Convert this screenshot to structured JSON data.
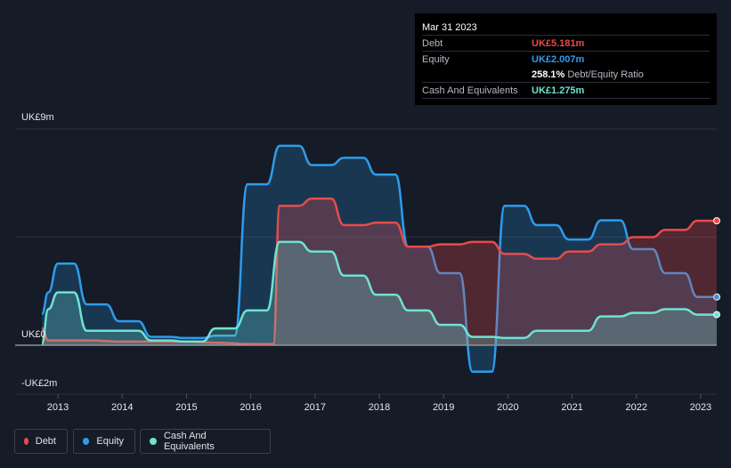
{
  "tooltip": {
    "date": "Mar 31 2023",
    "rows": [
      {
        "label": "Debt",
        "value": "UK£5.181m",
        "color": "#e84b4b"
      },
      {
        "label": "Equity",
        "value": "UK£2.007m",
        "color": "#2d9cec"
      },
      {
        "label": "",
        "value": "258.1%",
        "extra": "Debt/Equity Ratio",
        "color": "#ffffff"
      },
      {
        "label": "Cash And Equivalents",
        "value": "UK£1.275m",
        "color": "#6ee3d2"
      }
    ]
  },
  "legend": {
    "debt": "Debt",
    "equity": "Equity",
    "cash": "Cash And Equivalents"
  },
  "colors": {
    "debt": "#e84b4b",
    "equity": "#2d9cec",
    "cash": "#6ee3d2",
    "background": "#151b27"
  },
  "chart_data": {
    "type": "area",
    "y_tick_labels": [
      "UK£9m",
      "UK£0",
      "-UK£2m"
    ],
    "ylim": [
      -2,
      9
    ],
    "xlim": [
      2012.75,
      2023.25
    ],
    "x_tick_labels": [
      "2013",
      "2014",
      "2015",
      "2016",
      "2017",
      "2018",
      "2019",
      "2020",
      "2021",
      "2022",
      "2023"
    ],
    "grid": true,
    "legend_position": "bottom-left",
    "series": [
      {
        "name": "Debt",
        "points": [
          [
            2012.75,
            0.7
          ],
          [
            2012.85,
            0.2
          ],
          [
            2013.0,
            0.2
          ],
          [
            2013.5,
            0.2
          ],
          [
            2014.0,
            0.15
          ],
          [
            2014.5,
            0.15
          ],
          [
            2015.0,
            0.15
          ],
          [
            2015.5,
            0.1
          ],
          [
            2016.0,
            0.05
          ],
          [
            2016.25,
            0.05
          ],
          [
            2016.35,
            0.05
          ],
          [
            2016.45,
            5.8
          ],
          [
            2016.75,
            5.8
          ],
          [
            2016.95,
            6.1
          ],
          [
            2017.25,
            6.1
          ],
          [
            2017.45,
            5.0
          ],
          [
            2017.75,
            5.0
          ],
          [
            2017.95,
            5.1
          ],
          [
            2018.25,
            5.1
          ],
          [
            2018.45,
            4.1
          ],
          [
            2018.75,
            4.1
          ],
          [
            2018.95,
            4.2
          ],
          [
            2019.25,
            4.2
          ],
          [
            2019.45,
            4.3
          ],
          [
            2019.75,
            4.3
          ],
          [
            2019.95,
            3.8
          ],
          [
            2020.25,
            3.8
          ],
          [
            2020.45,
            3.6
          ],
          [
            2020.75,
            3.6
          ],
          [
            2020.95,
            3.9
          ],
          [
            2021.25,
            3.9
          ],
          [
            2021.45,
            4.2
          ],
          [
            2021.75,
            4.2
          ],
          [
            2021.95,
            4.5
          ],
          [
            2022.25,
            4.5
          ],
          [
            2022.45,
            4.8
          ],
          [
            2022.75,
            4.8
          ],
          [
            2022.95,
            5.181
          ],
          [
            2023.25,
            5.181
          ]
        ]
      },
      {
        "name": "Equity",
        "points": [
          [
            2012.75,
            1.3
          ],
          [
            2012.85,
            2.2
          ],
          [
            2013.0,
            3.4
          ],
          [
            2013.25,
            3.4
          ],
          [
            2013.45,
            1.7
          ],
          [
            2013.75,
            1.7
          ],
          [
            2013.95,
            1.0
          ],
          [
            2014.25,
            1.0
          ],
          [
            2014.45,
            0.35
          ],
          [
            2014.75,
            0.35
          ],
          [
            2014.95,
            0.3
          ],
          [
            2015.25,
            0.3
          ],
          [
            2015.45,
            0.4
          ],
          [
            2015.75,
            0.4
          ],
          [
            2015.95,
            6.7
          ],
          [
            2016.25,
            6.7
          ],
          [
            2016.45,
            8.3
          ],
          [
            2016.75,
            8.3
          ],
          [
            2016.95,
            7.5
          ],
          [
            2017.25,
            7.5
          ],
          [
            2017.45,
            7.8
          ],
          [
            2017.75,
            7.8
          ],
          [
            2017.95,
            7.1
          ],
          [
            2018.25,
            7.1
          ],
          [
            2018.45,
            4.1
          ],
          [
            2018.75,
            4.1
          ],
          [
            2018.95,
            3.0
          ],
          [
            2019.25,
            3.0
          ],
          [
            2019.45,
            -1.1
          ],
          [
            2019.75,
            -1.1
          ],
          [
            2019.95,
            5.8
          ],
          [
            2020.25,
            5.8
          ],
          [
            2020.45,
            5.0
          ],
          [
            2020.75,
            5.0
          ],
          [
            2020.95,
            4.4
          ],
          [
            2021.25,
            4.4
          ],
          [
            2021.45,
            5.2
          ],
          [
            2021.75,
            5.2
          ],
          [
            2021.95,
            4.0
          ],
          [
            2022.25,
            4.0
          ],
          [
            2022.45,
            3.0
          ],
          [
            2022.75,
            3.0
          ],
          [
            2022.95,
            2.007
          ],
          [
            2023.25,
            2.007
          ]
        ]
      },
      {
        "name": "Cash And Equivalents",
        "points": [
          [
            2012.75,
            0.05
          ],
          [
            2012.85,
            1.5
          ],
          [
            2013.0,
            2.2
          ],
          [
            2013.25,
            2.2
          ],
          [
            2013.45,
            0.6
          ],
          [
            2013.75,
            0.6
          ],
          [
            2013.95,
            0.6
          ],
          [
            2014.25,
            0.6
          ],
          [
            2014.45,
            0.2
          ],
          [
            2014.75,
            0.2
          ],
          [
            2014.95,
            0.15
          ],
          [
            2015.25,
            0.15
          ],
          [
            2015.45,
            0.7
          ],
          [
            2015.75,
            0.7
          ],
          [
            2015.95,
            1.45
          ],
          [
            2016.25,
            1.45
          ],
          [
            2016.45,
            4.3
          ],
          [
            2016.75,
            4.3
          ],
          [
            2016.95,
            3.9
          ],
          [
            2017.25,
            3.9
          ],
          [
            2017.45,
            2.9
          ],
          [
            2017.75,
            2.9
          ],
          [
            2017.95,
            2.1
          ],
          [
            2018.25,
            2.1
          ],
          [
            2018.45,
            1.45
          ],
          [
            2018.75,
            1.45
          ],
          [
            2018.95,
            0.85
          ],
          [
            2019.25,
            0.85
          ],
          [
            2019.45,
            0.35
          ],
          [
            2019.75,
            0.35
          ],
          [
            2019.95,
            0.3
          ],
          [
            2020.25,
            0.3
          ],
          [
            2020.45,
            0.6
          ],
          [
            2020.75,
            0.6
          ],
          [
            2020.95,
            0.6
          ],
          [
            2021.25,
            0.6
          ],
          [
            2021.45,
            1.2
          ],
          [
            2021.75,
            1.2
          ],
          [
            2021.95,
            1.35
          ],
          [
            2022.25,
            1.35
          ],
          [
            2022.45,
            1.5
          ],
          [
            2022.75,
            1.5
          ],
          [
            2022.95,
            1.275
          ],
          [
            2023.25,
            1.275
          ]
        ]
      }
    ]
  }
}
